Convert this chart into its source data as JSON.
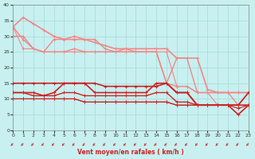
{
  "xlabel": "Vent moyen/en rafales ( km/h )",
  "xlim": [
    0,
    23
  ],
  "ylim": [
    0,
    40
  ],
  "xticks": [
    0,
    1,
    2,
    3,
    4,
    5,
    6,
    7,
    8,
    9,
    10,
    11,
    12,
    13,
    14,
    15,
    16,
    17,
    18,
    19,
    20,
    21,
    22,
    23
  ],
  "yticks": [
    0,
    5,
    10,
    15,
    20,
    25,
    30,
    35,
    40
  ],
  "bg_color": "#c8f0f0",
  "grid_color": "#a8d8d8",
  "light_series": [
    [
      33,
      36,
      34,
      32,
      30,
      29,
      29,
      29,
      28,
      27,
      26,
      26,
      26,
      26,
      26,
      26,
      23,
      23,
      23,
      13,
      12,
      12,
      12,
      12
    ],
    [
      30,
      30,
      26,
      25,
      29,
      29,
      30,
      29,
      29,
      26,
      25,
      26,
      25,
      25,
      25,
      15,
      23,
      23,
      12,
      12,
      12,
      12,
      12,
      12
    ],
    [
      33,
      29,
      26,
      25,
      25,
      25,
      26,
      25,
      25,
      25,
      25,
      25,
      25,
      25,
      25,
      15,
      14,
      14,
      12,
      12,
      12,
      12,
      8,
      12
    ],
    [
      33,
      26,
      26,
      25,
      25,
      25,
      25,
      25,
      25,
      25,
      25,
      25,
      25,
      25,
      25,
      25,
      14,
      14,
      12,
      12,
      8,
      8,
      8,
      8
    ]
  ],
  "dark_series": [
    [
      15,
      15,
      15,
      15,
      15,
      15,
      15,
      15,
      15,
      14,
      14,
      14,
      14,
      14,
      14,
      15,
      12,
      12,
      8,
      8,
      8,
      8,
      8,
      12
    ],
    [
      12,
      12,
      12,
      11,
      12,
      15,
      15,
      15,
      12,
      12,
      12,
      12,
      12,
      12,
      15,
      15,
      12,
      12,
      8,
      8,
      8,
      8,
      5,
      8
    ],
    [
      12,
      12,
      11,
      11,
      11,
      12,
      12,
      11,
      11,
      11,
      11,
      11,
      11,
      11,
      12,
      12,
      9,
      9,
      8,
      8,
      8,
      8,
      8,
      8
    ],
    [
      10,
      10,
      10,
      10,
      10,
      10,
      10,
      9,
      9,
      9,
      9,
      9,
      9,
      9,
      9,
      9,
      8,
      8,
      8,
      8,
      8,
      8,
      8,
      8
    ],
    [
      10,
      10,
      10,
      10,
      10,
      10,
      10,
      9,
      9,
      9,
      9,
      9,
      9,
      9,
      9,
      9,
      8,
      8,
      8,
      8,
      8,
      8,
      7,
      8
    ]
  ],
  "light_color": "#f08888",
  "dark_color": "#cc2222",
  "arrow_color": "#cc2222"
}
